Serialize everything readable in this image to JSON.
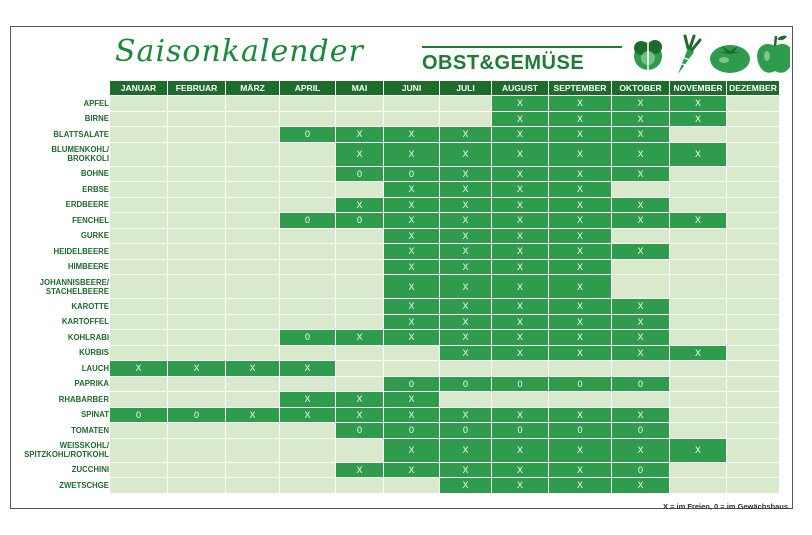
{
  "title_script": "Saisonkalender",
  "subtitle": "OBST&GEMÜSE",
  "icons": [
    "lettuce-icon",
    "carrot-icon",
    "tomato-icon",
    "apple-icon"
  ],
  "colors": {
    "dark": "#1e6b2c",
    "accent": "#2e9c4c",
    "light": "#d8e9cc"
  },
  "months": [
    "JANUAR",
    "FEBRUAR",
    "MÄRZ",
    "APRIL",
    "MAI",
    "JUNI",
    "JULI",
    "AUGUST",
    "SEPTEMBER",
    "OKTOBER",
    "NOVEMBER",
    "DEZEMBER"
  ],
  "rows": [
    {
      "name": "APFEL",
      "tall": false,
      "cells": [
        "",
        "",
        "",
        "",
        "",
        "",
        "",
        "X",
        "X",
        "X",
        "X",
        ""
      ]
    },
    {
      "name": "BIRNE",
      "tall": false,
      "cells": [
        "",
        "",
        "",
        "",
        "",
        "",
        "",
        "X",
        "X",
        "X",
        "X",
        ""
      ]
    },
    {
      "name": "BLATTSALATE",
      "tall": false,
      "cells": [
        "",
        "",
        "",
        "0",
        "X",
        "X",
        "X",
        "X",
        "X",
        "X",
        "",
        ""
      ]
    },
    {
      "name": "BLUMENKOHL/ BROKKOLI",
      "tall": true,
      "cells": [
        "",
        "",
        "",
        "",
        "X",
        "X",
        "X",
        "X",
        "X",
        "X",
        "X",
        ""
      ]
    },
    {
      "name": "BOHNE",
      "tall": false,
      "cells": [
        "",
        "",
        "",
        "",
        "0",
        "0",
        "X",
        "X",
        "X",
        "X",
        "",
        ""
      ]
    },
    {
      "name": "ERBSE",
      "tall": false,
      "cells": [
        "",
        "",
        "",
        "",
        "",
        "X",
        "X",
        "X",
        "X",
        "",
        "",
        ""
      ]
    },
    {
      "name": "ERDBEERE",
      "tall": false,
      "cells": [
        "",
        "",
        "",
        "",
        "X",
        "X",
        "X",
        "X",
        "X",
        "X",
        "",
        ""
      ]
    },
    {
      "name": "FENCHEL",
      "tall": false,
      "cells": [
        "",
        "",
        "",
        "0",
        "0",
        "X",
        "X",
        "X",
        "X",
        "X",
        "X",
        ""
      ]
    },
    {
      "name": "GURKE",
      "tall": false,
      "cells": [
        "",
        "",
        "",
        "",
        "",
        "X",
        "X",
        "X",
        "X",
        "",
        "",
        ""
      ]
    },
    {
      "name": "HEIDELBEERE",
      "tall": false,
      "cells": [
        "",
        "",
        "",
        "",
        "",
        "X",
        "X",
        "X",
        "X",
        "X",
        "",
        ""
      ]
    },
    {
      "name": "HIMBEERE",
      "tall": false,
      "cells": [
        "",
        "",
        "",
        "",
        "",
        "X",
        "X",
        "X",
        "X",
        "",
        "",
        ""
      ]
    },
    {
      "name": "JOHANNISBEERE/ STACHELBEERE",
      "tall": true,
      "cells": [
        "",
        "",
        "",
        "",
        "",
        "X",
        "X",
        "X",
        "X",
        "",
        "",
        ""
      ]
    },
    {
      "name": "KAROTTE",
      "tall": false,
      "cells": [
        "",
        "",
        "",
        "",
        "",
        "X",
        "X",
        "X",
        "X",
        "X",
        "",
        ""
      ]
    },
    {
      "name": "KARTOFFEL",
      "tall": false,
      "cells": [
        "",
        "",
        "",
        "",
        "",
        "X",
        "X",
        "X",
        "X",
        "X",
        "",
        ""
      ]
    },
    {
      "name": "KOHLRABI",
      "tall": false,
      "cells": [
        "",
        "",
        "",
        "0",
        "X",
        "X",
        "X",
        "X",
        "X",
        "X",
        "",
        ""
      ]
    },
    {
      "name": "KÜRBIS",
      "tall": false,
      "cells": [
        "",
        "",
        "",
        "",
        "",
        "",
        "X",
        "X",
        "X",
        "X",
        "X",
        ""
      ]
    },
    {
      "name": "LAUCH",
      "tall": false,
      "cells": [
        "X",
        "X",
        "X",
        "X",
        "",
        "",
        "",
        "",
        "",
        "",
        "",
        ""
      ]
    },
    {
      "name": "PAPRIKA",
      "tall": false,
      "cells": [
        "",
        "",
        "",
        "",
        "",
        "0",
        "0",
        "0",
        "0",
        "0",
        "",
        ""
      ]
    },
    {
      "name": "RHABARBER",
      "tall": false,
      "cells": [
        "",
        "",
        "",
        "X",
        "X",
        "X",
        "",
        "",
        "",
        "",
        "",
        ""
      ]
    },
    {
      "name": "SPINAT",
      "tall": false,
      "cells": [
        "0",
        "0",
        "X",
        "X",
        "X",
        "X",
        "X",
        "X",
        "X",
        "X",
        "",
        ""
      ]
    },
    {
      "name": "TOMATEN",
      "tall": false,
      "cells": [
        "",
        "",
        "",
        "",
        "0",
        "0",
        "0",
        "0",
        "0",
        "0",
        "",
        ""
      ]
    },
    {
      "name": "WEISSKOHL/ SPITZKOHL/ROTKOHL",
      "tall": true,
      "cells": [
        "",
        "",
        "",
        "",
        "",
        "X",
        "X",
        "X",
        "X",
        "X",
        "X",
        ""
      ]
    },
    {
      "name": "ZUCCHINI",
      "tall": false,
      "cells": [
        "",
        "",
        "",
        "",
        "X",
        "X",
        "X",
        "X",
        "X",
        "0",
        "",
        ""
      ]
    },
    {
      "name": "ZWETSCHGE",
      "tall": false,
      "cells": [
        "",
        "",
        "",
        "",
        "",
        "",
        "X",
        "X",
        "X",
        "X",
        "",
        ""
      ]
    }
  ],
  "legend": "X = im Freien, 0 = im Gewächshaus"
}
